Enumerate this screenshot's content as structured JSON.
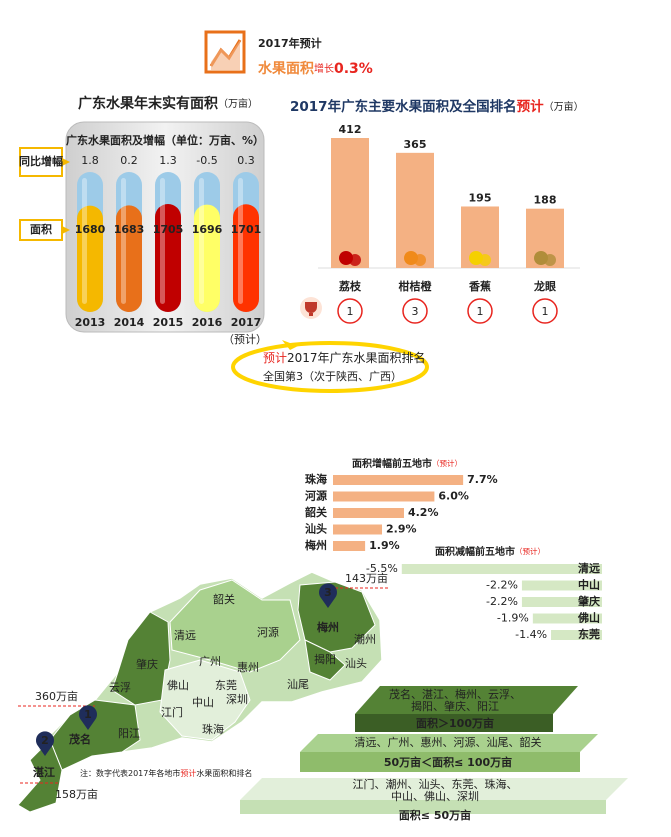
{
  "header": {
    "title": "2017年预计",
    "text": "水果面积",
    "highlight": "增长",
    "value": "0.3%"
  },
  "chart_data": [
    {
      "type": "tube",
      "title": "广东水果年末实有面积",
      "unit": "（万亩）",
      "subtitle": "广东水果面积及增幅（单位：万亩、%）",
      "categories": [
        "2013",
        "2014",
        "2015",
        "2016",
        "2017"
      ],
      "note": "（预计）",
      "highlight_color": "#e8251f",
      "series": [
        {
          "name": "同比增幅",
          "values": [
            1.8,
            0.2,
            1.3,
            -0.5,
            0.3
          ],
          "value_labels": [
            "1.8%",
            "0.2%",
            "1.3%",
            "-0.5%",
            "0.3%"
          ],
          "color": "#9dcbe8"
        },
        {
          "name": "面积",
          "values": [
            1680,
            1683,
            1705,
            1696,
            1701
          ],
          "colors": [
            "#f5b800",
            "#e8701a",
            "#c00000",
            "#ffff66",
            "#ff3300"
          ]
        }
      ]
    },
    {
      "type": "bar",
      "title": "2017年广东主要水果面积及全国排名",
      "title_highlight": "预计",
      "unit": "（万亩）",
      "categories": [
        "荔枝",
        "柑桔橙",
        "香蕉",
        "龙眼"
      ],
      "values": [
        412,
        365,
        195,
        188
      ],
      "ranks": [
        1,
        3,
        1,
        1
      ],
      "color": "#f4b183"
    },
    {
      "type": "hbar",
      "title": "面积增幅前五地市",
      "note": "（预计）",
      "categories": [
        "珠海",
        "河源",
        "韶关",
        "汕头",
        "梅州"
      ],
      "values": [
        7.7,
        6.0,
        4.2,
        2.9,
        1.9
      ],
      "value_labels": [
        "7.7%",
        "6.0%",
        "4.2%",
        "2.9%",
        "1.9%"
      ],
      "color": "#f4b183"
    },
    {
      "type": "hbar",
      "title": "面积减幅前五地市",
      "note": "（预计）",
      "categories": [
        "清远",
        "中山",
        "肇庆",
        "佛山",
        "东莞"
      ],
      "values": [
        -5.5,
        -2.2,
        -2.2,
        -1.9,
        -1.4
      ],
      "value_labels": [
        "-5.5%",
        "-2.2%",
        "-2.2%",
        "-1.9%",
        "-1.4%"
      ],
      "color": "#d5e8c4"
    }
  ],
  "callout": {
    "prefix": "预计",
    "lines": [
      "2017年广东水果面积排名",
      "全国第3（次于陕西、广西）"
    ]
  },
  "map": {
    "cities": [
      "韶关",
      "清远",
      "河源",
      "梅州",
      "潮州",
      "揭阳",
      "汕头",
      "广州",
      "惠州",
      "肇庆",
      "云浮",
      "佛山",
      "东莞",
      "深圳",
      "汕尾",
      "中山",
      "江门",
      "珠海",
      "阳江",
      "茂名",
      "湛江"
    ],
    "markers": [
      1,
      2,
      3
    ],
    "amounts": [
      "360万亩",
      "158万亩",
      "143万亩"
    ],
    "note": [
      "注：数字代表2017年各地市",
      "预计",
      "水果面积和排名"
    ],
    "tiers": [
      {
        "lines": [
          "茂名、湛江、梅州、云浮、",
          "揭阳、肇庆、阳江"
        ],
        "range": "面积＞100万亩"
      },
      {
        "lines": [
          "清远、广州、惠州、河源、汕尾、韶关"
        ],
        "range": "50万亩＜面积≤ 100万亩"
      },
      {
        "lines": [
          "江门、潮州、汕头、东莞、珠海、",
          "中山、佛山、深圳"
        ],
        "range": "面积≤ 50万亩"
      }
    ]
  }
}
